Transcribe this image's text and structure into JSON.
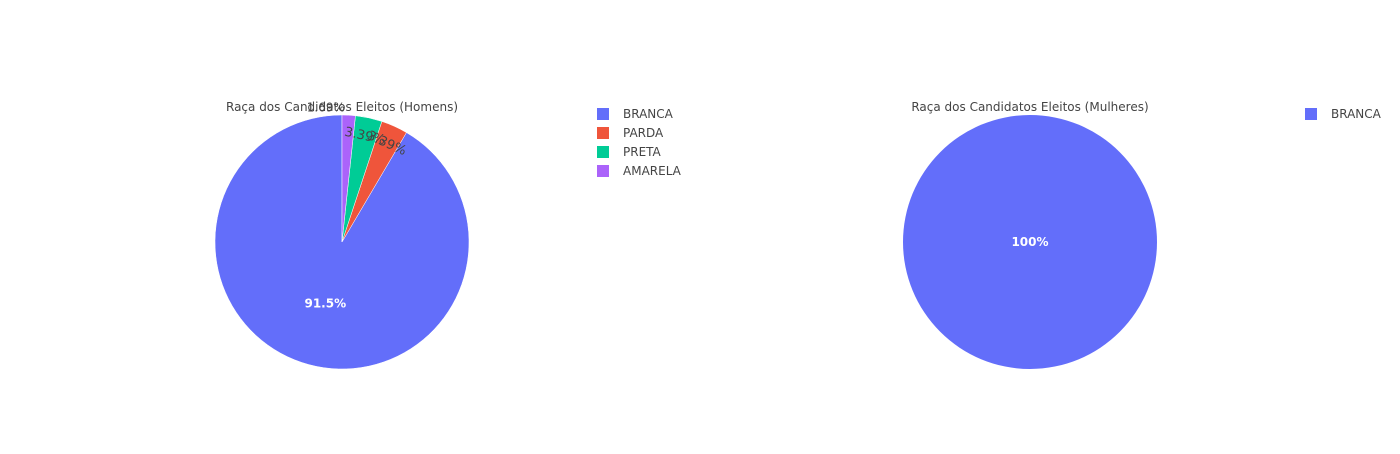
{
  "chart_data": [
    {
      "type": "pie",
      "title": "Raça dos Candidatos Eleitos (Homens)",
      "categories": [
        "BRANCA",
        "PARDA",
        "PRETA",
        "AMARELA"
      ],
      "values": [
        91.5,
        3.39,
        3.39,
        1.69
      ],
      "value_labels": [
        "91.5%",
        "3.39%",
        "3.39%",
        "1.69%"
      ],
      "colors": [
        "#636efa",
        "#ef553b",
        "#00cc96",
        "#ab63fa"
      ],
      "legend_entries": [
        "BRANCA",
        "PARDA",
        "PRETA",
        "AMARELA"
      ],
      "legend_placement": "right"
    },
    {
      "type": "pie",
      "title": "Raça dos Candidatos Eleitos (Mulheres)",
      "categories": [
        "BRANCA"
      ],
      "values": [
        100
      ],
      "value_labels": [
        "100%"
      ],
      "colors": [
        "#636efa"
      ],
      "legend_entries": [
        "BRANCA"
      ],
      "legend_placement": "right"
    }
  ]
}
